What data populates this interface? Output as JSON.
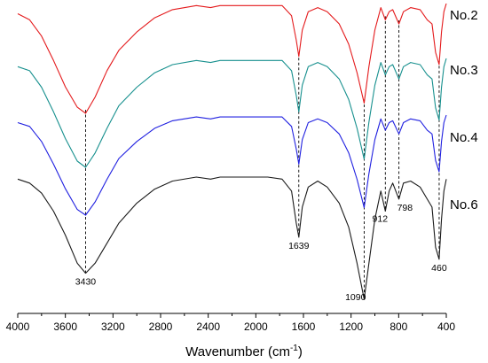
{
  "chart_data": {
    "type": "line",
    "title": "",
    "xlabel": "Wavenumber (cm",
    "xlabel_sup": "-1",
    "xlabel_close": ")",
    "ylabel": "",
    "xlim": [
      4000,
      400
    ],
    "x_reversed": true,
    "xticks": [
      4000,
      3600,
      3200,
      2800,
      2400,
      2000,
      1600,
      1200,
      800,
      400
    ],
    "y_axis_visible": false,
    "grid": false,
    "legend": "inline-right",
    "peak_markers": [
      {
        "x": 3430,
        "label": "3430"
      },
      {
        "x": 1639,
        "label": "1639"
      },
      {
        "x": 1090,
        "label": "1090"
      },
      {
        "x": 912,
        "label": "912"
      },
      {
        "x": 798,
        "label": "798"
      },
      {
        "x": 460,
        "label": "460"
      }
    ],
    "series": [
      {
        "name": "No.2",
        "color": "#e41a1c",
        "points": [
          [
            4000,
            91
          ],
          [
            3900,
            88
          ],
          [
            3800,
            80
          ],
          [
            3700,
            68
          ],
          [
            3600,
            55
          ],
          [
            3500,
            45
          ],
          [
            3430,
            42
          ],
          [
            3350,
            50
          ],
          [
            3250,
            63
          ],
          [
            3150,
            73
          ],
          [
            3000,
            82
          ],
          [
            2850,
            89
          ],
          [
            2700,
            93
          ],
          [
            2500,
            95
          ],
          [
            2380,
            94
          ],
          [
            2300,
            95
          ],
          [
            2100,
            95
          ],
          [
            1900,
            95
          ],
          [
            1780,
            95
          ],
          [
            1700,
            90
          ],
          [
            1660,
            78
          ],
          [
            1639,
            70
          ],
          [
            1610,
            83
          ],
          [
            1560,
            92
          ],
          [
            1480,
            94
          ],
          [
            1400,
            92
          ],
          [
            1300,
            86
          ],
          [
            1220,
            76
          ],
          [
            1150,
            62
          ],
          [
            1090,
            47
          ],
          [
            1050,
            65
          ],
          [
            1000,
            83
          ],
          [
            950,
            94
          ],
          [
            912,
            88
          ],
          [
            880,
            92
          ],
          [
            850,
            93
          ],
          [
            798,
            86
          ],
          [
            760,
            92
          ],
          [
            700,
            94
          ],
          [
            620,
            93
          ],
          [
            560,
            88
          ],
          [
            520,
            86
          ],
          [
            490,
            72
          ],
          [
            460,
            66
          ],
          [
            440,
            82
          ],
          [
            420,
            92
          ],
          [
            400,
            96
          ]
        ]
      },
      {
        "name": "No.3",
        "color": "#17908e",
        "points": [
          [
            4000,
            82
          ],
          [
            3900,
            80
          ],
          [
            3800,
            72
          ],
          [
            3700,
            60
          ],
          [
            3600,
            47
          ],
          [
            3500,
            36
          ],
          [
            3430,
            33
          ],
          [
            3350,
            40
          ],
          [
            3250,
            52
          ],
          [
            3150,
            63
          ],
          [
            3000,
            72
          ],
          [
            2850,
            79
          ],
          [
            2700,
            83
          ],
          [
            2500,
            85
          ],
          [
            2380,
            84
          ],
          [
            2300,
            85
          ],
          [
            2100,
            85
          ],
          [
            1900,
            85
          ],
          [
            1780,
            85
          ],
          [
            1700,
            80
          ],
          [
            1660,
            68
          ],
          [
            1639,
            60
          ],
          [
            1610,
            73
          ],
          [
            1560,
            82
          ],
          [
            1480,
            84
          ],
          [
            1400,
            82
          ],
          [
            1300,
            76
          ],
          [
            1220,
            66
          ],
          [
            1150,
            52
          ],
          [
            1090,
            37
          ],
          [
            1050,
            55
          ],
          [
            1000,
            73
          ],
          [
            950,
            84
          ],
          [
            912,
            78
          ],
          [
            880,
            82
          ],
          [
            850,
            83
          ],
          [
            798,
            76
          ],
          [
            760,
            82
          ],
          [
            700,
            84
          ],
          [
            620,
            83
          ],
          [
            560,
            78
          ],
          [
            520,
            76
          ],
          [
            490,
            62
          ],
          [
            460,
            56
          ],
          [
            440,
            72
          ],
          [
            420,
            82
          ],
          [
            400,
            86
          ]
        ]
      },
      {
        "name": "No.4",
        "color": "#2020e0",
        "points": [
          [
            4000,
            71
          ],
          [
            3900,
            69
          ],
          [
            3800,
            61
          ],
          [
            3700,
            49
          ],
          [
            3600,
            36
          ],
          [
            3500,
            25
          ],
          [
            3430,
            22
          ],
          [
            3350,
            29
          ],
          [
            3250,
            41
          ],
          [
            3150,
            52
          ],
          [
            3000,
            61
          ],
          [
            2850,
            68
          ],
          [
            2700,
            72
          ],
          [
            2500,
            74
          ],
          [
            2380,
            73
          ],
          [
            2300,
            74
          ],
          [
            2100,
            74
          ],
          [
            1900,
            74
          ],
          [
            1780,
            74
          ],
          [
            1700,
            69
          ],
          [
            1660,
            57
          ],
          [
            1639,
            49
          ],
          [
            1610,
            62
          ],
          [
            1560,
            71
          ],
          [
            1480,
            73
          ],
          [
            1400,
            71
          ],
          [
            1300,
            65
          ],
          [
            1220,
            55
          ],
          [
            1150,
            41
          ],
          [
            1090,
            26
          ],
          [
            1050,
            44
          ],
          [
            1000,
            62
          ],
          [
            950,
            73
          ],
          [
            912,
            67
          ],
          [
            880,
            71
          ],
          [
            850,
            72
          ],
          [
            798,
            65
          ],
          [
            760,
            71
          ],
          [
            700,
            73
          ],
          [
            620,
            72
          ],
          [
            560,
            67
          ],
          [
            520,
            65
          ],
          [
            490,
            51
          ],
          [
            460,
            45
          ],
          [
            440,
            61
          ],
          [
            420,
            71
          ],
          [
            400,
            75
          ]
        ]
      },
      {
        "name": "No.6",
        "color": "#1a1a1a",
        "points": [
          [
            4000,
            62
          ],
          [
            3900,
            60
          ],
          [
            3800,
            55
          ],
          [
            3700,
            46
          ],
          [
            3600,
            34
          ],
          [
            3500,
            20
          ],
          [
            3430,
            15
          ],
          [
            3350,
            20
          ],
          [
            3250,
            30
          ],
          [
            3150,
            40
          ],
          [
            3000,
            50
          ],
          [
            2850,
            57
          ],
          [
            2700,
            61
          ],
          [
            2500,
            63
          ],
          [
            2380,
            62
          ],
          [
            2300,
            63
          ],
          [
            2100,
            63
          ],
          [
            1900,
            63
          ],
          [
            1780,
            62
          ],
          [
            1700,
            56
          ],
          [
            1660,
            40
          ],
          [
            1639,
            33
          ],
          [
            1610,
            48
          ],
          [
            1560,
            58
          ],
          [
            1480,
            61
          ],
          [
            1400,
            58
          ],
          [
            1300,
            50
          ],
          [
            1220,
            38
          ],
          [
            1150,
            20
          ],
          [
            1090,
            2
          ],
          [
            1050,
            20
          ],
          [
            1000,
            42
          ],
          [
            950,
            56
          ],
          [
            912,
            46
          ],
          [
            880,
            56
          ],
          [
            850,
            60
          ],
          [
            798,
            52
          ],
          [
            760,
            60
          ],
          [
            700,
            61
          ],
          [
            620,
            58
          ],
          [
            560,
            52
          ],
          [
            520,
            48
          ],
          [
            490,
            28
          ],
          [
            460,
            22
          ],
          [
            440,
            42
          ],
          [
            420,
            56
          ],
          [
            400,
            62
          ]
        ]
      }
    ]
  }
}
